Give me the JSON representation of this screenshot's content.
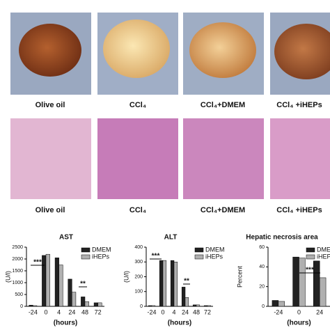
{
  "panels": {
    "photo_labels": [
      "Olive oil",
      "CCl₄",
      "CCl₄+DMEM",
      "CCl₄ +iHEPs"
    ],
    "histology_labels": [
      "Olive oil",
      "CCl₄",
      "CCl₄+DMEM",
      "CCl₄ +iHEPs"
    ]
  },
  "chart_data": [
    {
      "type": "bar",
      "title": "AST",
      "y_label": "(U/l)",
      "x_label": "(hours)",
      "categories": [
        "-24",
        "0",
        "4",
        "24",
        "48",
        "72"
      ],
      "series": [
        {
          "name": "DMEM",
          "color": "#222222",
          "values": [
            50,
            2150,
            2050,
            1150,
            400,
            150
          ]
        },
        {
          "name": "iHEPs",
          "color": "#b0b0b0",
          "values": [
            30,
            2200,
            1750,
            600,
            200,
            150
          ]
        }
      ],
      "ylim": [
        0,
        2500
      ],
      "yticks": [
        0,
        500,
        1000,
        1500,
        2000,
        2500
      ],
      "annotations": [
        "***",
        "**"
      ]
    },
    {
      "type": "bar",
      "title": "ALT",
      "y_label": "(U/l)",
      "x_label": "(hours)",
      "categories": [
        "-24",
        "0",
        "4",
        "24",
        "48",
        "72"
      ],
      "series": [
        {
          "name": "DMEM",
          "color": "#222222",
          "values": [
            5,
            310,
            310,
            130,
            10,
            5
          ]
        },
        {
          "name": "iHEPs",
          "color": "#b0b0b0",
          "values": [
            5,
            310,
            300,
            60,
            10,
            5
          ]
        }
      ],
      "ylim": [
        0,
        400
      ],
      "yticks": [
        0,
        100,
        200,
        300,
        400
      ],
      "annotations": [
        "***",
        "**"
      ]
    },
    {
      "type": "bar",
      "title": "Hepatic necrosis area",
      "y_label": "Percent",
      "x_label": "(hours)",
      "categories": [
        "-24",
        "0",
        "24"
      ],
      "series": [
        {
          "name": "DMEM",
          "color": "#222222",
          "values": [
            6,
            50,
            46
          ]
        },
        {
          "name": "iHEPs",
          "color": "#b0b0b0",
          "values": [
            5,
            49,
            29
          ]
        }
      ],
      "ylim": [
        0,
        60
      ],
      "yticks": [
        0,
        20,
        40,
        60
      ],
      "annotations": [
        "***"
      ]
    }
  ]
}
